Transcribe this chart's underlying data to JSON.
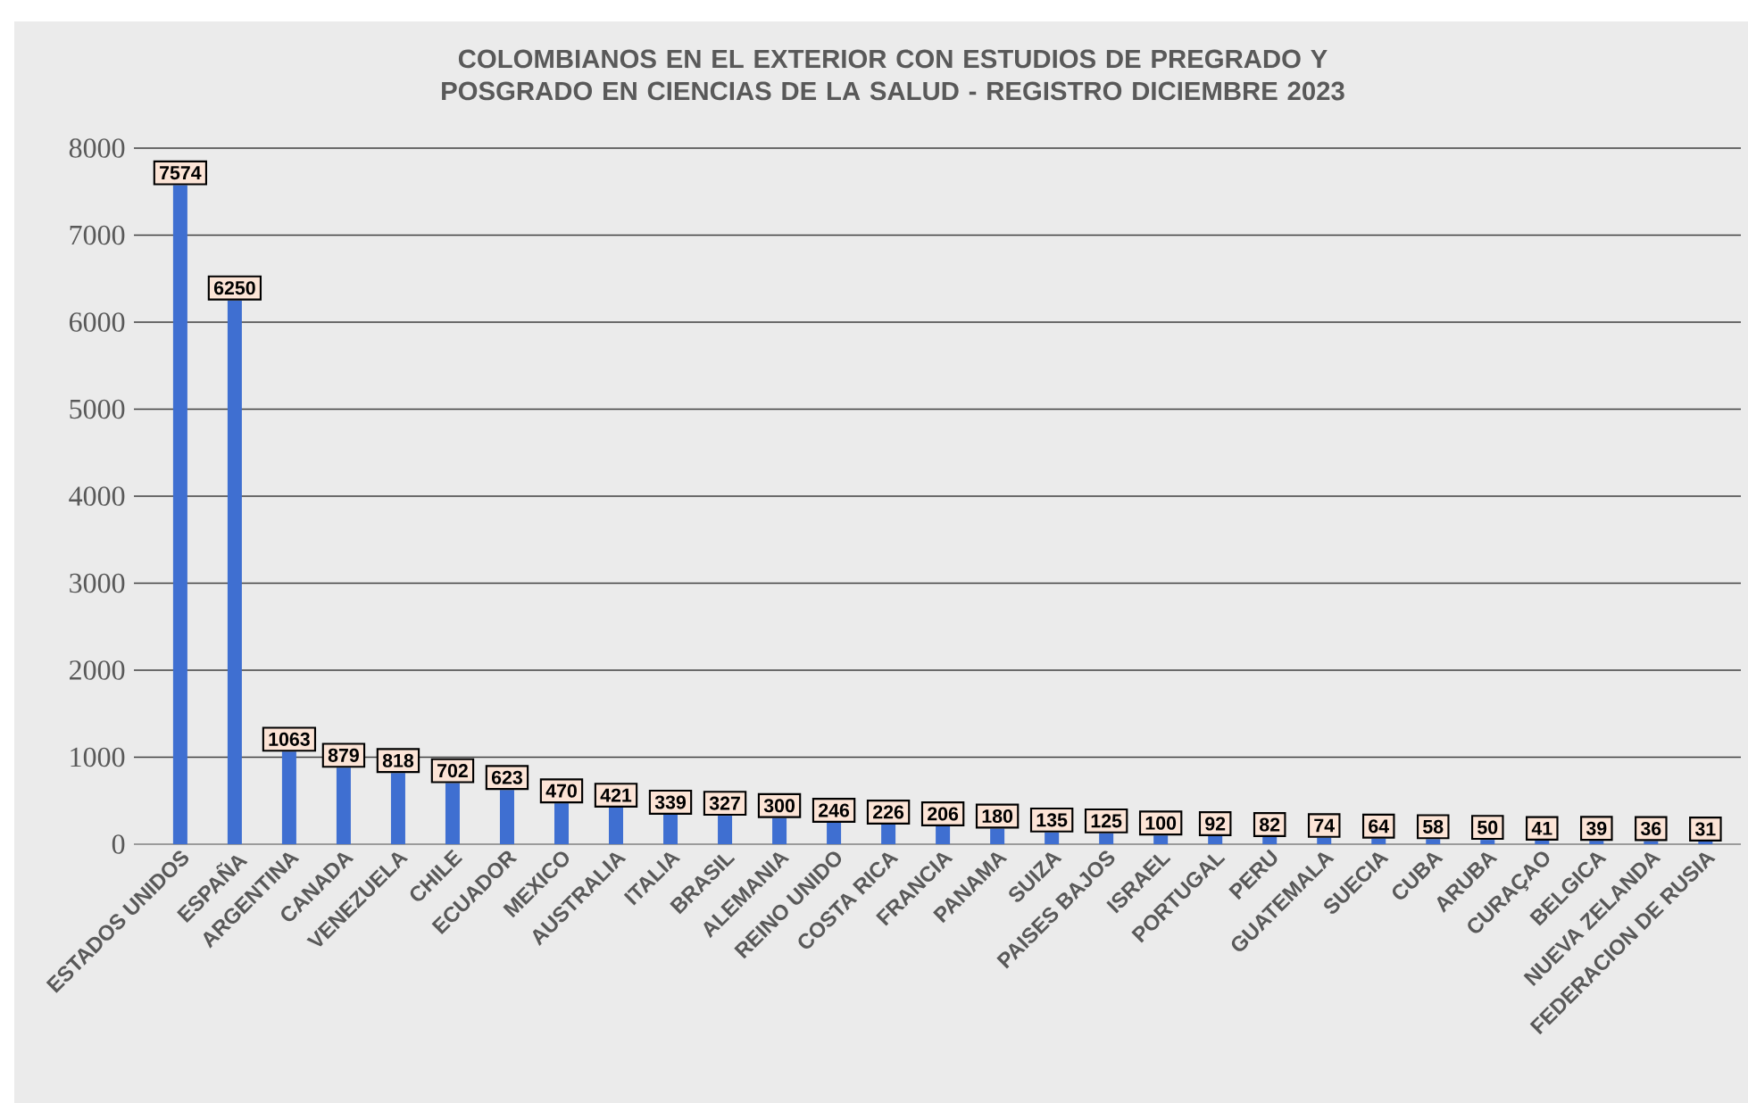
{
  "chart_data": {
    "type": "bar",
    "title": "COLOMBIANOS EN EL EXTERIOR CON ESTUDIOS DE PREGRADO Y POSGRADO EN CIENCIAS DE LA SALUD - REGISTRO DICIEMBRE 2023",
    "categories": [
      "ESTADOS UNIDOS",
      "ESPAÑA",
      "ARGENTINA",
      "CANADA",
      "VENEZUELA",
      "CHILE",
      "ECUADOR",
      "MEXICO",
      "AUSTRALIA",
      "ITALIA",
      "BRASIL",
      "ALEMANIA",
      "REINO UNIDO",
      "COSTA RICA",
      "FRANCIA",
      "PANAMA",
      "SUIZA",
      "PAISES BAJOS",
      "ISRAEL",
      "PORTUGAL",
      "PERU",
      "GUATEMALA",
      "SUECIA",
      "CUBA",
      "ARUBA",
      "CURAÇAO",
      "BELGICA",
      "NUEVA ZELANDA",
      "FEDERACION DE RUSIA"
    ],
    "values": [
      7574,
      6250,
      1063,
      879,
      818,
      702,
      623,
      470,
      421,
      339,
      327,
      300,
      246,
      226,
      206,
      180,
      135,
      125,
      100,
      92,
      82,
      74,
      64,
      58,
      50,
      41,
      39,
      36,
      31
    ],
    "color": "#3f6fd1",
    "ylim": [
      0,
      8000
    ],
    "yticks": [
      0,
      1000,
      2000,
      3000,
      4000,
      5000,
      6000,
      7000,
      8000
    ],
    "grid": "y",
    "data_labels": true
  }
}
